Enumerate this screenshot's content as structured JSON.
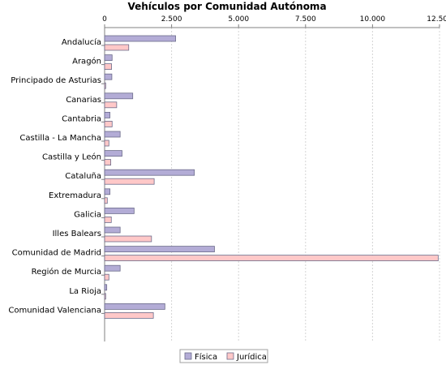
{
  "chart_data": {
    "type": "bar",
    "orientation": "horizontal",
    "title": "Vehículos por Comunidad Autónoma",
    "xlabel": "",
    "ylabel": "",
    "xlim": [
      0,
      12500
    ],
    "x_ticks": [
      0,
      2500,
      5000,
      7500,
      10000,
      12500
    ],
    "x_tick_labels": [
      "0",
      "2.500",
      "5.000",
      "7.500",
      "10.000",
      "12.500"
    ],
    "x_axis_position": "top",
    "grid": true,
    "legend_position": "bottom",
    "categories": [
      "Andalucía",
      "Aragón",
      "Principado de Asturias",
      "Canarias",
      "Cantabria",
      "Castilla - La Mancha",
      "Castilla y León",
      "Cataluña",
      "Extremadura",
      "Galicia",
      "Illes Balears",
      "Comunidad de Madrid",
      "Región de Murcia",
      "La Rioja",
      "Comunidad Valenciana"
    ],
    "series": [
      {
        "name": "Física",
        "color": "#b3acd6",
        "values": [
          2650,
          280,
          270,
          1050,
          200,
          580,
          650,
          3350,
          200,
          1100,
          580,
          4100,
          580,
          80,
          2250
        ]
      },
      {
        "name": "Jurídica",
        "color": "#ffc8c8",
        "values": [
          900,
          260,
          40,
          450,
          280,
          160,
          230,
          1850,
          100,
          250,
          1750,
          12450,
          160,
          40,
          1820
        ]
      }
    ]
  }
}
